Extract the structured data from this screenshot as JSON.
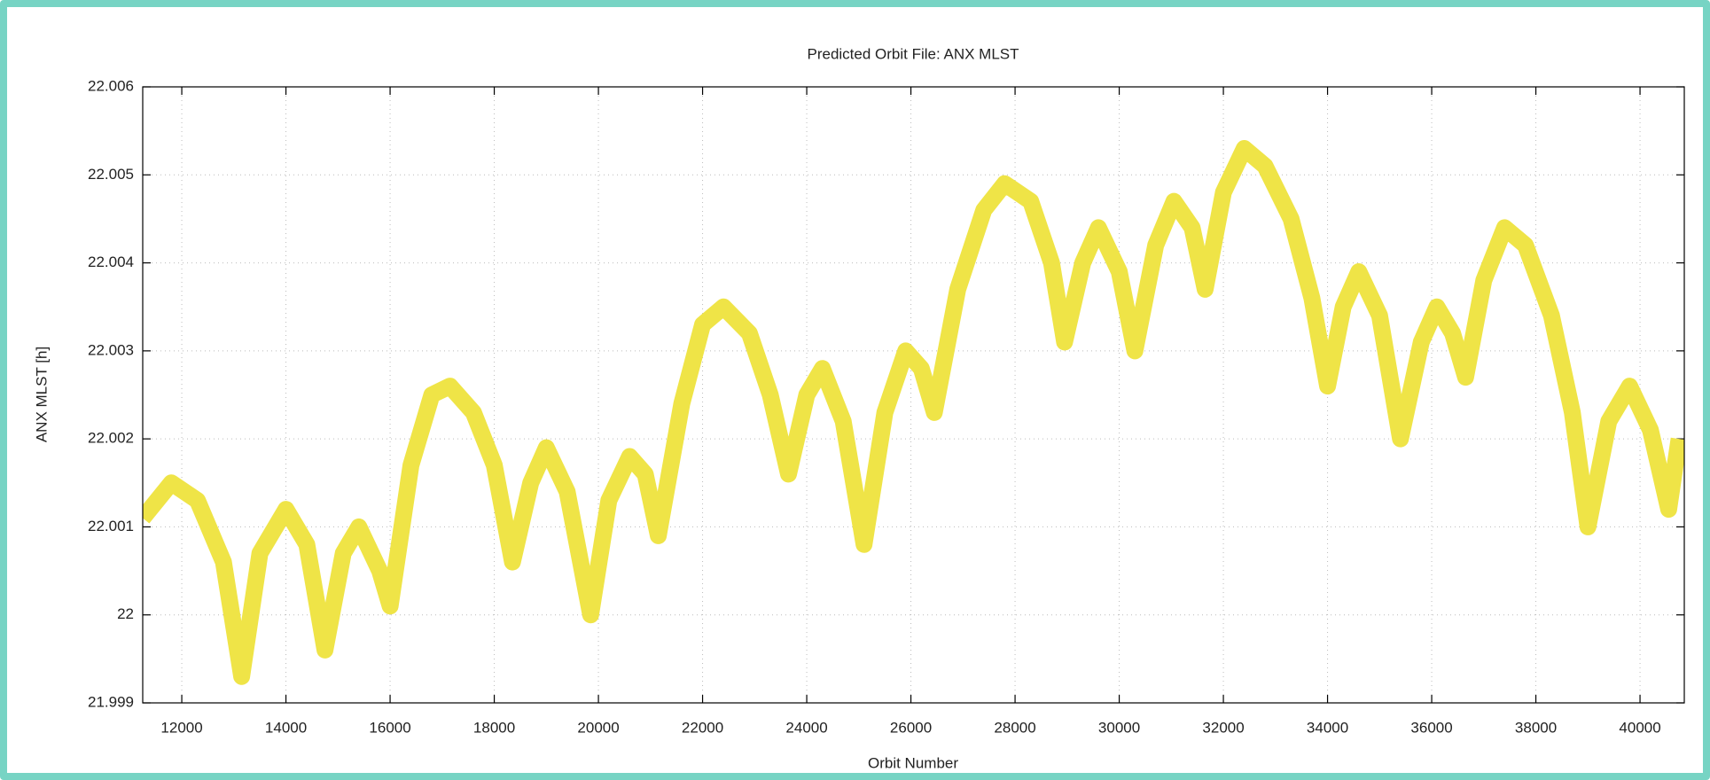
{
  "chart_data": {
    "type": "line",
    "title": "Predicted Orbit File: ANX MLST",
    "xlabel": "Orbit Number",
    "ylabel": "ANX MLST [h]",
    "xlim": [
      11250,
      40850
    ],
    "ylim": [
      21.999,
      22.006
    ],
    "xticks": [
      12000,
      14000,
      16000,
      18000,
      20000,
      22000,
      24000,
      26000,
      28000,
      30000,
      32000,
      34000,
      36000,
      38000,
      40000
    ],
    "yticks": [
      21.999,
      22,
      22.001,
      22.002,
      22.003,
      22.004,
      22.005,
      22.006
    ],
    "grid": true,
    "x": [
      11250,
      11800,
      12300,
      12800,
      13150,
      13500,
      14000,
      14400,
      14750,
      15100,
      15400,
      15800,
      16000,
      16400,
      16800,
      17150,
      17600,
      18000,
      18350,
      18700,
      19000,
      19400,
      19850,
      20200,
      20600,
      20900,
      21150,
      21600,
      22000,
      22400,
      22900,
      23300,
      23650,
      24000,
      24300,
      24700,
      25100,
      25500,
      25900,
      26200,
      26450,
      26900,
      27400,
      27800,
      28300,
      28700,
      28950,
      29300,
      29600,
      30000,
      30300,
      30700,
      31050,
      31400,
      31650,
      32000,
      32400,
      32800,
      33300,
      33700,
      34000,
      34300,
      34600,
      35000,
      35400,
      35800,
      36100,
      36400,
      36650,
      37000,
      37400,
      37800,
      38300,
      38700,
      39000,
      39400,
      39800,
      40200,
      40550,
      40750
    ],
    "series": [
      {
        "color": "#efe447",
        "values": [
          22.0011,
          22.0015,
          22.0013,
          22.0006,
          21.9993,
          22.0007,
          22.0012,
          22.0008,
          21.9996,
          22.0007,
          22.001,
          22.0005,
          22.0001,
          22.0017,
          22.0025,
          22.0026,
          22.0023,
          22.0017,
          22.0006,
          22.0015,
          22.0019,
          22.0014,
          22.0,
          22.0013,
          22.0018,
          22.0016,
          22.0009,
          22.0024,
          22.0033,
          22.0035,
          22.0032,
          22.0025,
          22.0016,
          22.0025,
          22.0028,
          22.0022,
          22.0008,
          22.0023,
          22.003,
          22.0028,
          22.0023,
          22.0037,
          22.0046,
          22.0049,
          22.0047,
          22.004,
          22.0031,
          22.004,
          22.0044,
          22.0039,
          22.003,
          22.0042,
          22.0047,
          22.0044,
          22.0037,
          22.0048,
          22.0053,
          22.0051,
          22.0045,
          22.0036,
          22.0026,
          22.0035,
          22.0039,
          22.0034,
          22.002,
          22.0031,
          22.0035,
          22.0032,
          22.0027,
          22.0038,
          22.0044,
          22.0042,
          22.0034,
          22.0023,
          22.001,
          22.0022,
          22.0026,
          22.0021,
          22.0012,
          22.002
        ]
      }
    ]
  }
}
